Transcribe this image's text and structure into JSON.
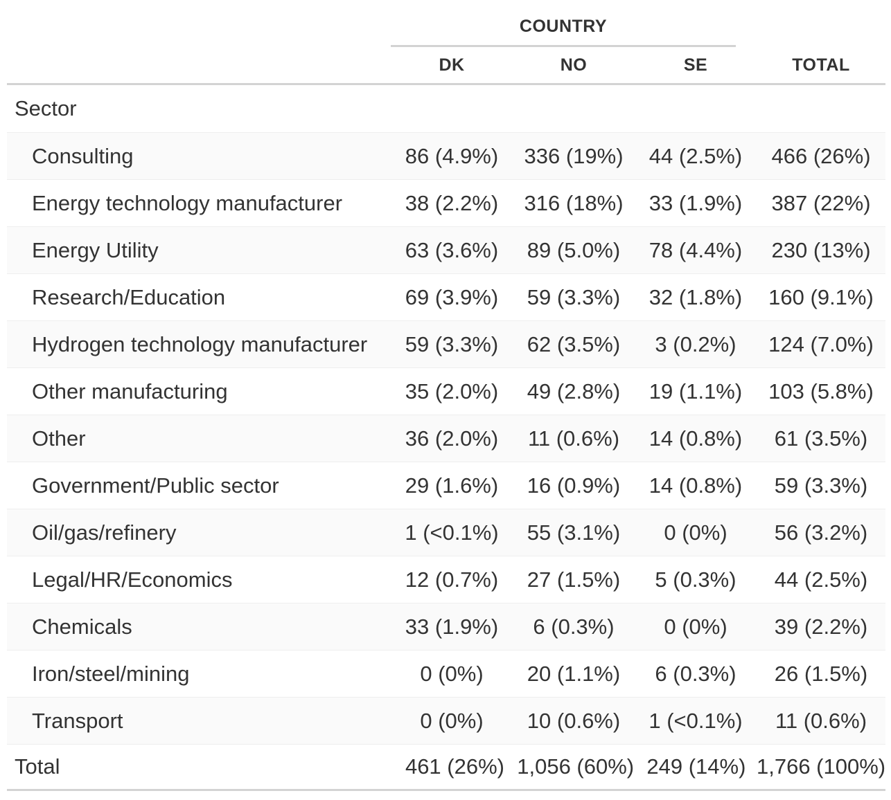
{
  "table": {
    "spanner": "COUNTRY",
    "columns": [
      "DK",
      "NO",
      "SE",
      "TOTAL"
    ],
    "group_label": "Sector",
    "rows": [
      {
        "label": "Consulting",
        "dk": "86 (4.9%)",
        "no": "336 (19%)",
        "se": "44 (2.5%)",
        "total": "466 (26%)"
      },
      {
        "label": "Energy technology manufacturer",
        "dk": "38 (2.2%)",
        "no": "316 (18%)",
        "se": "33 (1.9%)",
        "total": "387 (22%)"
      },
      {
        "label": "Energy Utility",
        "dk": "63 (3.6%)",
        "no": "89 (5.0%)",
        "se": "78 (4.4%)",
        "total": "230 (13%)"
      },
      {
        "label": "Research/Education",
        "dk": "69 (3.9%)",
        "no": "59 (3.3%)",
        "se": "32 (1.8%)",
        "total": "160 (9.1%)"
      },
      {
        "label": "Hydrogen technology manufacturer",
        "dk": "59 (3.3%)",
        "no": "62 (3.5%)",
        "se": "3 (0.2%)",
        "total": "124 (7.0%)"
      },
      {
        "label": "Other manufacturing",
        "dk": "35 (2.0%)",
        "no": "49 (2.8%)",
        "se": "19 (1.1%)",
        "total": "103 (5.8%)"
      },
      {
        "label": "Other",
        "dk": "36 (2.0%)",
        "no": "11 (0.6%)",
        "se": "14 (0.8%)",
        "total": "61 (3.5%)"
      },
      {
        "label": "Government/Public sector",
        "dk": "29 (1.6%)",
        "no": "16 (0.9%)",
        "se": "14 (0.8%)",
        "total": "59 (3.3%)"
      },
      {
        "label": "Oil/gas/refinery",
        "dk": "1 (<0.1%)",
        "no": "55 (3.1%)",
        "se": "0 (0%)",
        "total": "56 (3.2%)"
      },
      {
        "label": "Legal/HR/Economics",
        "dk": "12 (0.7%)",
        "no": "27 (1.5%)",
        "se": "5 (0.3%)",
        "total": "44 (2.5%)"
      },
      {
        "label": "Chemicals",
        "dk": "33 (1.9%)",
        "no": "6 (0.3%)",
        "se": "0 (0%)",
        "total": "39 (2.2%)"
      },
      {
        "label": "Iron/steel/mining",
        "dk": "0 (0%)",
        "no": "20 (1.1%)",
        "se": "6 (0.3%)",
        "total": "26 (1.5%)"
      },
      {
        "label": "Transport",
        "dk": "0 (0%)",
        "no": "10 (0.6%)",
        "se": "1 (<0.1%)",
        "total": "11 (0.6%)"
      }
    ],
    "total": {
      "label": "Total",
      "dk": "461 (26%)",
      "no": "1,056 (60%)",
      "se": "249 (14%)",
      "total": "1,766 (100%)"
    }
  }
}
